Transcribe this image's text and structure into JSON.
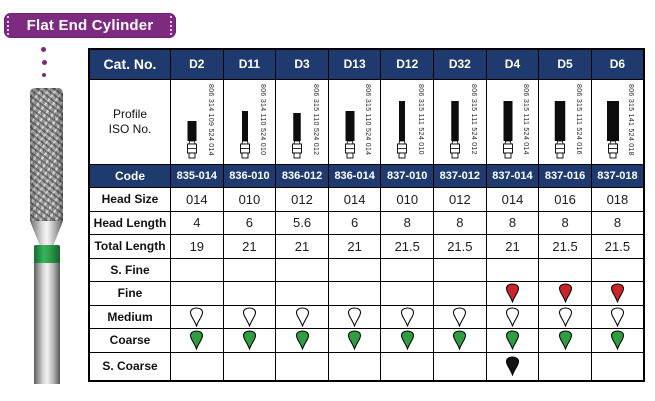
{
  "badge": {
    "label": "Flat End Cylinder"
  },
  "colors": {
    "header_bg": "#1e3a6e",
    "badge_bg": "#7d2a80",
    "fine_red": "#cc2229",
    "coarse_green": "#2f9e41",
    "s_coarse_black": "#141414",
    "medium_white": "#ffffff"
  },
  "table": {
    "cat_no_label": "Cat. No.",
    "row_labels": {
      "profile_line1": "Profile",
      "profile_line2": "ISO No.",
      "code": "Code",
      "head_size": "Head Size",
      "head_length": "Head Length",
      "total_length": "Total Length",
      "s_fine": "S. Fine",
      "fine": "Fine",
      "medium": "Medium",
      "coarse": "Coarse",
      "s_coarse": "S. Coarse"
    },
    "columns": [
      {
        "cat_no": "D2",
        "iso": "806 314 109 524 014",
        "code": "835-014",
        "head_size": "014",
        "head_length": "4",
        "total_length": "19",
        "s_fine": null,
        "fine": null,
        "medium": "white",
        "coarse": "green",
        "s_coarse": null
      },
      {
        "cat_no": "D11",
        "iso": "806 314 110 524 010",
        "code": "836-010",
        "head_size": "010",
        "head_length": "6",
        "total_length": "21",
        "s_fine": null,
        "fine": null,
        "medium": "white",
        "coarse": "green",
        "s_coarse": null
      },
      {
        "cat_no": "D3",
        "iso": "806 315 110 524 012",
        "code": "836-012",
        "head_size": "012",
        "head_length": "5.6",
        "total_length": "21",
        "s_fine": null,
        "fine": null,
        "medium": "white",
        "coarse": "green",
        "s_coarse": null
      },
      {
        "cat_no": "D13",
        "iso": "806 315 110 524 014",
        "code": "836-014",
        "head_size": "014",
        "head_length": "6",
        "total_length": "21",
        "s_fine": null,
        "fine": null,
        "medium": "white",
        "coarse": "green",
        "s_coarse": null
      },
      {
        "cat_no": "D12",
        "iso": "806 315 111 524 010",
        "code": "837-010",
        "head_size": "010",
        "head_length": "8",
        "total_length": "21.5",
        "s_fine": null,
        "fine": null,
        "medium": "white",
        "coarse": "green",
        "s_coarse": null
      },
      {
        "cat_no": "D32",
        "iso": "806 315 111 524 012",
        "code": "837-012",
        "head_size": "012",
        "head_length": "8",
        "total_length": "21.5",
        "s_fine": null,
        "fine": null,
        "medium": "white",
        "coarse": "green",
        "s_coarse": null
      },
      {
        "cat_no": "D4",
        "iso": "806 315 111 524 014",
        "code": "837-014",
        "head_size": "014",
        "head_length": "8",
        "total_length": "21",
        "s_fine": null,
        "fine": "red",
        "medium": "white",
        "coarse": "green",
        "s_coarse": "black"
      },
      {
        "cat_no": "D5",
        "iso": "806 315 111 524 016",
        "code": "837-016",
        "head_size": "016",
        "head_length": "8",
        "total_length": "21.5",
        "s_fine": null,
        "fine": "red",
        "medium": "white",
        "coarse": "green",
        "s_coarse": null
      },
      {
        "cat_no": "D6",
        "iso": "806 315 141 524 018",
        "code": "837-018",
        "head_size": "018",
        "head_length": "8",
        "total_length": "21.5",
        "s_fine": null,
        "fine": "red",
        "medium": "white",
        "coarse": "green",
        "s_coarse": null
      }
    ]
  }
}
